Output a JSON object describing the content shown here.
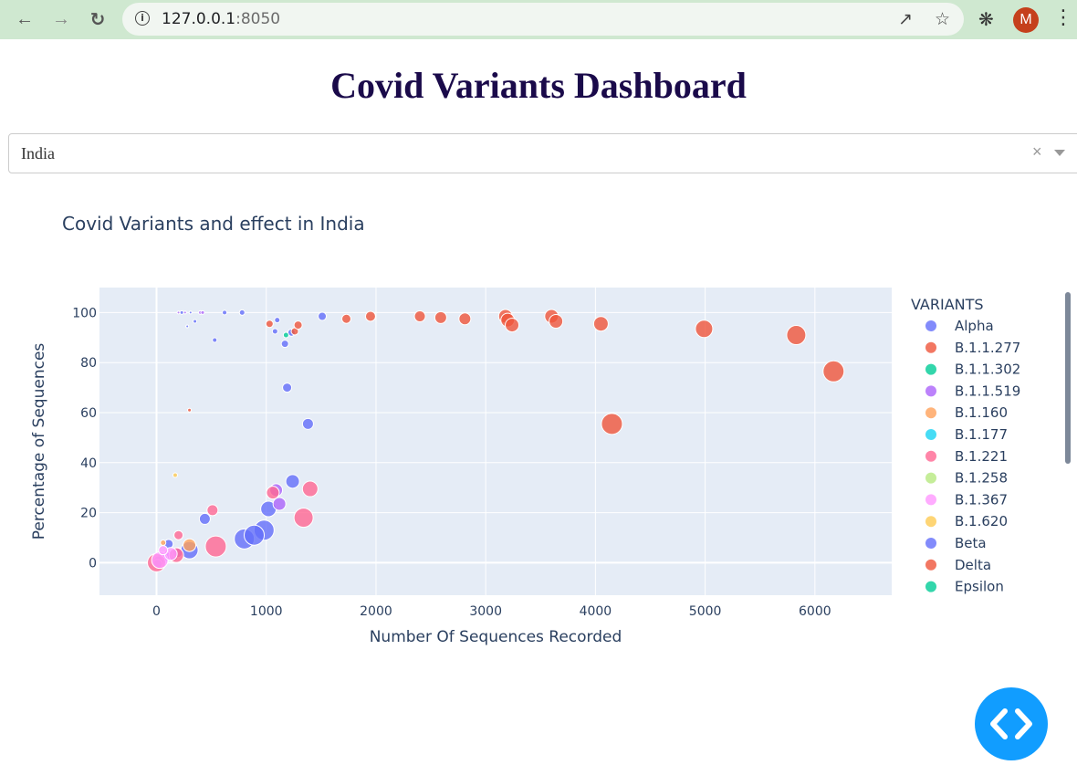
{
  "browser": {
    "url_host": "127.0.0.1",
    "url_port": ":8050",
    "avatar_letter": "M",
    "icons": [
      "back-arrow-icon",
      "forward-arrow-icon",
      "reload-icon",
      "info-icon",
      "share-icon",
      "star-icon",
      "extensions-icon",
      "menu-kebab-icon"
    ]
  },
  "dashboard": {
    "title": "Covid Variants Dashboard",
    "dropdown_value": "India",
    "clear_symbol": "×"
  },
  "chart_data": {
    "type": "scatter",
    "title": "Covid Variants and effect in India",
    "xlabel": "Number Of Sequences Recorded",
    "ylabel": "Percentage of Sequences",
    "xlim": [
      -520,
      6700
    ],
    "ylim": [
      -13,
      110
    ],
    "xticks": [
      0,
      1000,
      2000,
      3000,
      4000,
      5000,
      6000
    ],
    "yticks": [
      0,
      20,
      40,
      60,
      80,
      100
    ],
    "legend_title": "VARIANTS",
    "legend_position": "right",
    "grid": true,
    "plot_bg": "#e5ecf6",
    "series": [
      {
        "name": "Alpha",
        "color": "#636efa",
        "points": [
          [
            230,
            100,
            2
          ],
          [
            280,
            94.5,
            1.5
          ],
          [
            310,
            100,
            1.5
          ],
          [
            350,
            96.5,
            2
          ],
          [
            530,
            89,
            2.5
          ],
          [
            620,
            100,
            2.5
          ],
          [
            780,
            100,
            3
          ],
          [
            1080,
            92.5,
            3
          ],
          [
            1100,
            97,
            3
          ],
          [
            1170,
            87.5,
            4
          ],
          [
            1190,
            70,
            5
          ],
          [
            1230,
            92,
            4
          ],
          [
            1510,
            98.5,
            4.5
          ],
          [
            1380,
            55.5,
            6
          ],
          [
            1240,
            32.5,
            7.5
          ],
          [
            1020,
            21.5,
            8.5
          ],
          [
            980,
            13,
            11
          ],
          [
            800,
            9.5,
            11
          ],
          [
            890,
            11,
            11
          ],
          [
            440,
            17.5,
            6
          ],
          [
            300,
            5,
            9.5
          ],
          [
            110,
            7.5,
            5
          ],
          [
            150,
            3,
            6.5
          ],
          [
            60,
            2,
            6.5
          ],
          [
            20,
            0.5,
            6
          ],
          [
            10,
            -0.5,
            5
          ]
        ]
      },
      {
        "name": "B.1.1.277",
        "color": "#ef553b",
        "points": [
          [
            1030,
            95.5,
            4
          ],
          [
            1260,
            92.5,
            4
          ],
          [
            1290,
            95,
            4.5
          ]
        ]
      },
      {
        "name": "B.1.1.302",
        "color": "#00cc96",
        "points": [
          [
            1180,
            91,
            3
          ]
        ]
      },
      {
        "name": "B.1.1.519",
        "color": "#ab63fa",
        "points": [
          [
            200,
            100,
            1.5
          ],
          [
            260,
            100,
            1.5
          ],
          [
            400,
            100,
            2
          ],
          [
            420,
            100,
            2
          ],
          [
            1090,
            29,
            7
          ],
          [
            1120,
            23.5,
            7
          ],
          [
            190,
            4,
            5.5
          ],
          [
            90,
            2.5,
            5
          ]
        ]
      },
      {
        "name": "B.1.160",
        "color": "#ffa15a",
        "points": [
          [
            60,
            8,
            3
          ],
          [
            300,
            7,
            7
          ]
        ]
      },
      {
        "name": "B.1.177",
        "color": "#19d3f3",
        "points": []
      },
      {
        "name": "B.1.221",
        "color": "#ff6692",
        "points": [
          [
            200,
            11,
            5
          ],
          [
            510,
            21,
            6
          ],
          [
            540,
            6.5,
            11.5
          ],
          [
            1340,
            18,
            10.5
          ],
          [
            1400,
            29.5,
            8.5
          ],
          [
            1060,
            28,
            7
          ],
          [
            180,
            3,
            8
          ],
          [
            0,
            0,
            10
          ]
        ]
      },
      {
        "name": "B.1.258",
        "color": "#b6e880",
        "points": []
      },
      {
        "name": "B.1.367",
        "color": "#ff97ff",
        "points": [
          [
            30,
            1,
            9
          ],
          [
            130,
            3.5,
            7
          ],
          [
            60,
            5,
            5
          ]
        ]
      },
      {
        "name": "B.1.620",
        "color": "#fecb52",
        "points": [
          [
            170,
            35,
            2.5
          ]
        ]
      },
      {
        "name": "Beta",
        "color": "#636efa",
        "points": []
      },
      {
        "name": "Delta",
        "color": "#ef553b",
        "points": [
          [
            300,
            61,
            2
          ],
          [
            1730,
            97.5,
            5
          ],
          [
            1950,
            98.5,
            5.5
          ],
          [
            2400,
            98.5,
            6
          ],
          [
            2590,
            98,
            6.5
          ],
          [
            2810,
            97.5,
            6.5
          ],
          [
            3180,
            98.5,
            7.5
          ],
          [
            3200,
            97,
            7.5
          ],
          [
            3240,
            95,
            7.5
          ],
          [
            3600,
            98.5,
            7.5
          ],
          [
            3640,
            96.5,
            7.5
          ],
          [
            4050,
            95.5,
            8
          ],
          [
            4990,
            93.5,
            9.5
          ],
          [
            5830,
            91,
            10.5
          ],
          [
            6170,
            76.5,
            11.5
          ],
          [
            4150,
            55.5,
            11.5
          ]
        ]
      },
      {
        "name": "Epsilon",
        "color": "#00cc96",
        "points": []
      }
    ]
  }
}
